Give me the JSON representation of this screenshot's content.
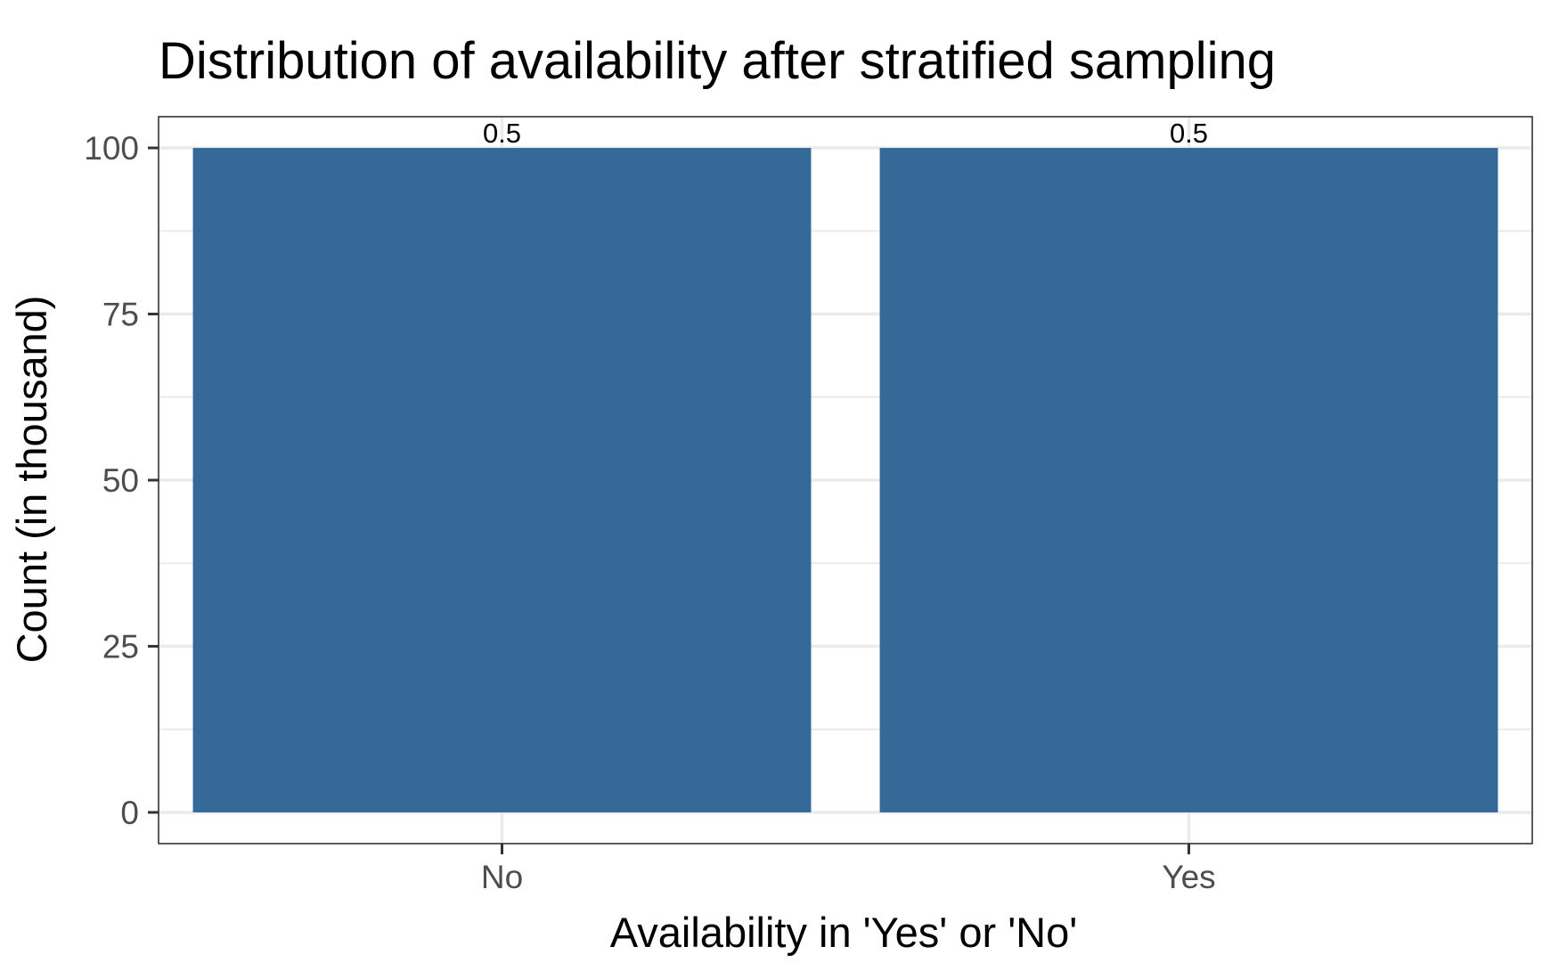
{
  "chart_data": {
    "type": "bar",
    "title": "Distribution of availability after stratified sampling",
    "xlabel": "Availability in 'Yes' or 'No'",
    "ylabel": "Count (in thousand)",
    "categories": [
      "No",
      "Yes"
    ],
    "values": [
      100,
      100
    ],
    "data_labels": [
      "0.5",
      "0.5"
    ],
    "ylim": [
      -4.7,
      104.7
    ],
    "yticks": [
      0,
      25,
      50,
      75,
      100
    ],
    "ytick_labels": [
      "0",
      "25",
      "50",
      "75",
      "100"
    ],
    "grid": true,
    "bar_color": "#356a98",
    "gridline_color": "#ebebeb",
    "panel_border_color": "#333333"
  }
}
